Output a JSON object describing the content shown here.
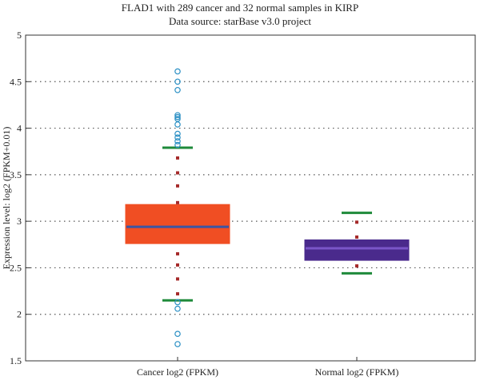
{
  "chart_data": {
    "type": "box",
    "title": "FLAD1 with 289 cancer and 32 normal samples in KIRP",
    "subtitle": "Data source: starBase v3.0 project",
    "xlabel": "",
    "ylabel": "Expression level: log2 (FPKM+0.01)",
    "ylim": [
      1.5,
      5
    ],
    "yticks": [
      "1.5",
      "2",
      "2.5",
      "3",
      "3.5",
      "4",
      "4.5",
      "5"
    ],
    "grid": "horizontal dotted",
    "categories": [
      "Cancer log2 (FPKM)",
      "Normal log2 (FPKM)"
    ],
    "series": [
      {
        "box_color": "#f04e23",
        "median_color": "#3a56a4",
        "q1": 2.76,
        "median": 2.94,
        "q3": 3.18,
        "whisker_low": 2.15,
        "whisker_high": 3.79,
        "dots": [
          3.68,
          3.52,
          3.38,
          3.2,
          2.65,
          2.53,
          2.38,
          2.22
        ],
        "outliers": [
          4.61,
          4.5,
          4.41,
          4.14,
          4.12,
          4.1,
          4.04,
          3.94,
          3.9,
          3.86,
          3.82,
          2.13,
          2.06,
          1.79,
          1.68
        ]
      },
      {
        "box_color": "#4a2a8c",
        "median_color": "#7a55c8",
        "q1": 2.58,
        "median": 2.71,
        "q3": 2.8,
        "whisker_low": 2.44,
        "whisker_high": 3.09,
        "dots": [
          2.99,
          2.83,
          2.52
        ],
        "outliers": []
      }
    ]
  }
}
